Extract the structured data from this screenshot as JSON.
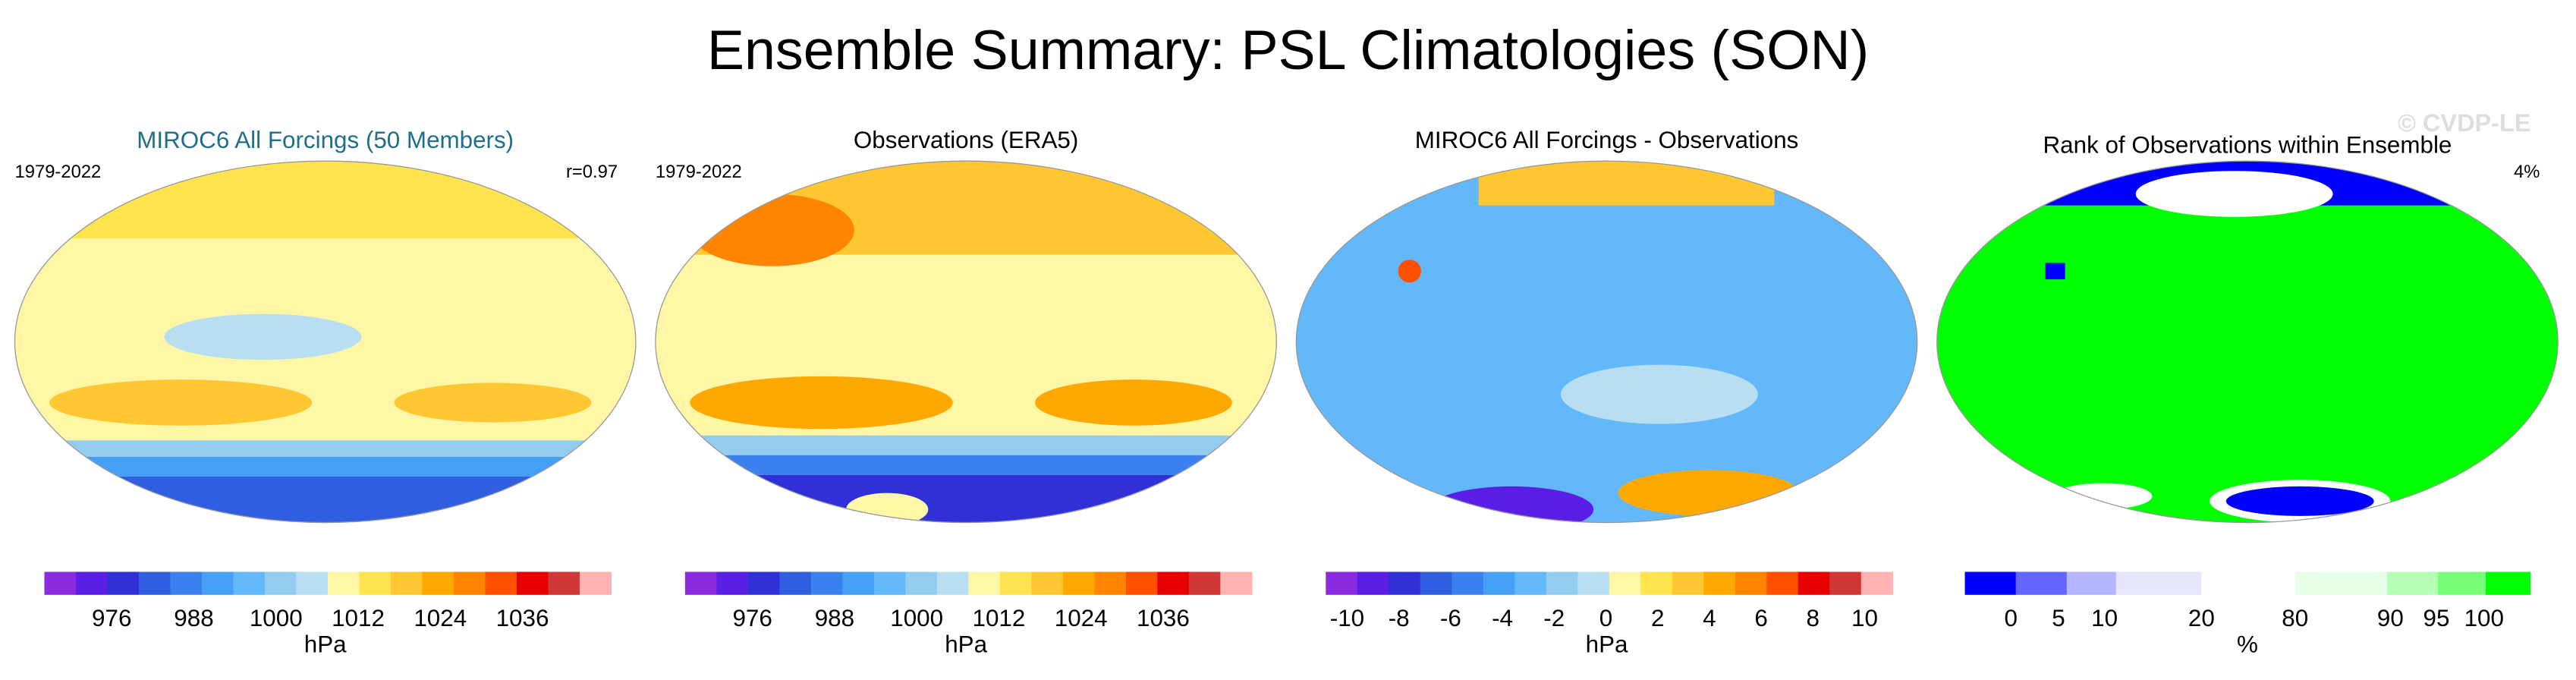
{
  "title": "Ensemble Summary: PSL Climatologies (SON)",
  "watermark": "© CVDP-LE",
  "panels": [
    {
      "title": "MIROC6 All Forcings (50 Members)",
      "left_label": "1979-2022",
      "right_label": "r=0.97",
      "colorbar": {
        "colors": [
          "#8a2be2",
          "#5a1fe6",
          "#3030d8",
          "#2f5fe0",
          "#3a80ee",
          "#45a0f5",
          "#62b8f8",
          "#92cdf0",
          "#b8def2",
          "#fff6a6",
          "#ffe34f",
          "#ffc833",
          "#ffa800",
          "#ff8400",
          "#ff5000",
          "#e60000",
          "#d03838",
          "#ffb3b3"
        ],
        "labels": [
          "976",
          "988",
          "1000",
          "1012",
          "1024",
          "1036"
        ],
        "unit": "hPa"
      }
    },
    {
      "title": "Observations (ERA5)",
      "left_label": "1979-2022",
      "colorbar": {
        "colors": [
          "#8a2be2",
          "#5a1fe6",
          "#3030d8",
          "#2f5fe0",
          "#3a80ee",
          "#45a0f5",
          "#62b8f8",
          "#92cdf0",
          "#b8def2",
          "#fff6a6",
          "#ffe34f",
          "#ffc833",
          "#ffa800",
          "#ff8400",
          "#ff5000",
          "#e60000",
          "#d03838",
          "#ffb3b3"
        ],
        "labels": [
          "976",
          "988",
          "1000",
          "1012",
          "1024",
          "1036"
        ],
        "unit": "hPa"
      }
    },
    {
      "title": "MIROC6 All Forcings - Observations",
      "colorbar": {
        "colors": [
          "#8a2be2",
          "#5a1fe6",
          "#3030d8",
          "#2f5fe0",
          "#3a80ee",
          "#45a0f5",
          "#62b8f8",
          "#92cdf0",
          "#b8def2",
          "#fff6a6",
          "#ffe34f",
          "#ffc833",
          "#ffa800",
          "#ff8400",
          "#ff5000",
          "#e60000",
          "#d03838",
          "#ffb3b3"
        ],
        "labels": [
          "-10",
          "-8",
          "-6",
          "-4",
          "-2",
          "0",
          "2",
          "4",
          "6",
          "8",
          "10"
        ],
        "unit": "hPa"
      }
    },
    {
      "title": "Rank of Observations within Ensemble",
      "right_label": "4%",
      "colorbar": {
        "colors": [
          "#0000ff",
          "#6464ff",
          "#b4b4ff",
          "#e6e6ff",
          "#ffffff",
          "#e6ffe6",
          "#b4ffb4",
          "#78ff78",
          "#00ff00"
        ],
        "labels": [
          "0",
          "5",
          "10",
          "20",
          "80",
          "90",
          "95",
          "100"
        ],
        "unit": "%"
      }
    }
  ]
}
